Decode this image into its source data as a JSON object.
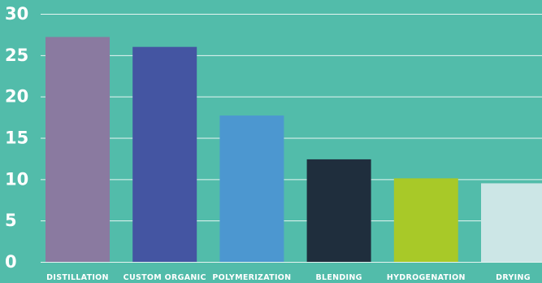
{
  "chart_data": {
    "type": "bar",
    "categories": [
      "DISTILLATION",
      "CUSTOM ORGANIC",
      "POLYMERIZATION",
      "BLENDING",
      "HYDROGENATION",
      "DRYING"
    ],
    "values": [
      27.2,
      26.0,
      17.7,
      12.4,
      10.1,
      9.5
    ],
    "colors": [
      "#8a7aa0",
      "#4455a2",
      "#4c97d0",
      "#1f2e3d",
      "#a8c928",
      "#cce6e6"
    ],
    "yticks": [
      "0",
      "5",
      "10",
      "15",
      "20",
      "25",
      "30"
    ],
    "ylim": [
      0,
      30
    ],
    "grid": true,
    "title": "",
    "xlabel": "",
    "ylabel": ""
  },
  "style": {
    "background": "#52bcaa",
    "grid_color": "#ffffff",
    "text_color": "#ffffff"
  }
}
